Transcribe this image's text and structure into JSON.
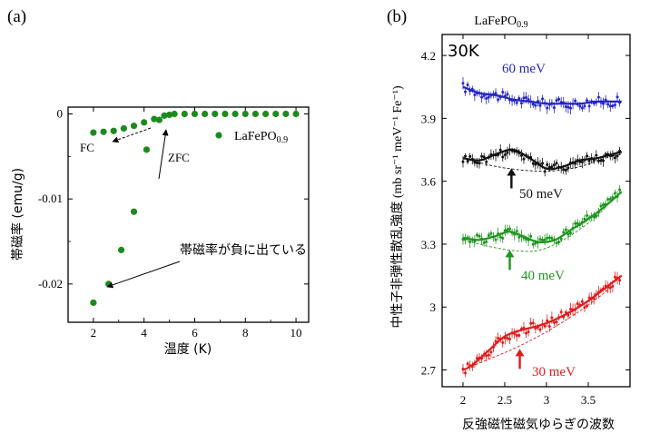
{
  "chart_data": [
    {
      "panel_label": "(a)",
      "type": "scatter",
      "xlabel": "温度 (K)",
      "ylabel": "帯磁率 (emu/g)",
      "xlim": [
        1,
        10.5
      ],
      "ylim": [
        -0.0245,
        0.0008
      ],
      "xticks": [
        2,
        4,
        6,
        8,
        10
      ],
      "yticks": [
        0,
        -0.01,
        -0.02
      ],
      "ytick_labels": [
        "0",
        "-0.01",
        "-0.02"
      ],
      "legend": {
        "label": "LaFePO",
        "subscript": "0.9",
        "color": "#1e8a1e",
        "placement": "right"
      },
      "series": [
        {
          "name": "FC",
          "color": "#1e8a1e",
          "x": [
            2.0,
            2.4,
            2.8,
            3.2,
            3.6,
            4.0,
            4.4,
            4.8,
            5.2,
            5.6,
            6.0,
            6.4,
            6.8,
            7.2,
            7.6,
            8.0,
            8.4,
            8.8,
            9.2,
            9.6,
            10.0
          ],
          "y": [
            -0.0022,
            -0.0021,
            -0.002,
            -0.0017,
            -0.0014,
            -0.001,
            -0.0006,
            -0.0002,
            0,
            0,
            0,
            0,
            0,
            0,
            0,
            0,
            0,
            0,
            0,
            0,
            0
          ]
        },
        {
          "name": "ZFC",
          "color": "#1e8a1e",
          "x": [
            2.0,
            2.6,
            3.1,
            3.6,
            4.1,
            4.6,
            5.0
          ],
          "y": [
            -0.0222,
            -0.02,
            -0.016,
            -0.0115,
            -0.0042,
            -0.0007,
            -0.0001
          ]
        }
      ],
      "annotations": {
        "fc": "FC",
        "zfc": "ZFC",
        "negative_note": "帯磁率が負に出ている"
      }
    },
    {
      "panel_label": "(b)",
      "type": "line",
      "title": "LaFePO",
      "title_subscript": "0.9",
      "corner_label": "30K",
      "xlabel": "反強磁性磁気ゆらぎの波数",
      "ylabel": "中性子非弾性散乱強度 (mb sr⁻¹ meV⁻¹ Fe⁻¹)",
      "xlim": [
        1.75,
        4.0
      ],
      "ylim": [
        2.62,
        4.3
      ],
      "xticks": [
        2,
        2.5,
        3,
        3.5
      ],
      "yticks": [
        2.7,
        3,
        3.3,
        3.6,
        3.9,
        4.2
      ],
      "ytick_labels": [
        "2.7",
        "3",
        "3.3",
        "3.6",
        "3.9",
        "4.2"
      ],
      "series": [
        {
          "name": "60 meV",
          "color": "#2424c8",
          "fit_x": [
            2.0,
            2.2,
            2.4,
            2.6,
            2.8,
            3.0,
            3.2,
            3.4,
            3.6,
            3.8,
            3.9
          ],
          "fit_y": [
            4.05,
            4.02,
            4.01,
            3.99,
            3.98,
            3.97,
            3.97,
            3.97,
            3.98,
            3.98,
            3.98
          ],
          "base_x": [],
          "base_y": [],
          "peak_x": null
        },
        {
          "name": "50 meV",
          "color": "#111111",
          "fit_x": [
            2.0,
            2.2,
            2.4,
            2.6,
            2.8,
            3.0,
            3.2,
            3.4,
            3.6,
            3.8,
            3.9
          ],
          "fit_y": [
            3.71,
            3.7,
            3.73,
            3.75,
            3.71,
            3.66,
            3.67,
            3.7,
            3.71,
            3.73,
            3.74
          ],
          "base_x": [
            2.0,
            2.4,
            2.8,
            3.1,
            3.4,
            3.7,
            3.9
          ],
          "base_y": [
            3.71,
            3.67,
            3.65,
            3.65,
            3.67,
            3.71,
            3.73
          ],
          "peak_x": 2.58
        },
        {
          "name": "40 meV",
          "color": "#1e961e",
          "fit_x": [
            2.0,
            2.2,
            2.4,
            2.55,
            2.7,
            2.9,
            3.1,
            3.3,
            3.5,
            3.7,
            3.9
          ],
          "fit_y": [
            3.33,
            3.32,
            3.34,
            3.36,
            3.34,
            3.31,
            3.32,
            3.37,
            3.42,
            3.48,
            3.55
          ],
          "base_x": [
            2.0,
            2.3,
            2.6,
            2.9,
            3.2,
            3.5,
            3.7
          ],
          "base_y": [
            3.32,
            3.29,
            3.27,
            3.27,
            3.32,
            3.4,
            3.47
          ],
          "peak_x": 2.56
        },
        {
          "name": "30 meV",
          "color": "#e01c1c",
          "fit_x": [
            2.0,
            2.1,
            2.3,
            2.5,
            2.7,
            2.9,
            3.1,
            3.3,
            3.5,
            3.7,
            3.9
          ],
          "fit_y": [
            2.7,
            2.72,
            2.79,
            2.86,
            2.89,
            2.91,
            2.94,
            2.98,
            3.03,
            3.09,
            3.15
          ],
          "base_x": [
            2.0,
            2.3,
            2.6,
            2.9,
            3.2,
            3.5,
            3.8
          ],
          "base_y": [
            2.7,
            2.75,
            2.8,
            2.86,
            2.93,
            3.01,
            3.1
          ],
          "peak_x": 2.68
        }
      ]
    }
  ]
}
